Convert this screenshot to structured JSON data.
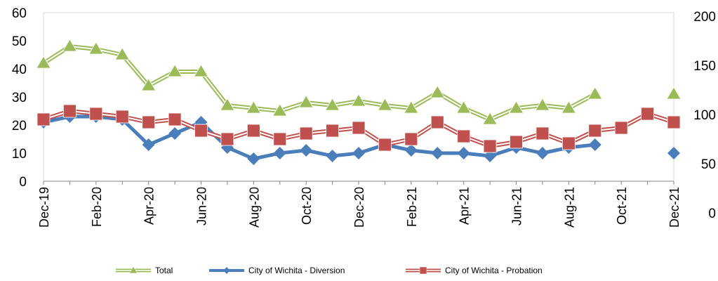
{
  "chart_data": {
    "type": "line",
    "categories": [
      "Dec-19",
      null,
      "Feb-20",
      null,
      "Apr-20",
      null,
      "Jun-20",
      null,
      "Aug-20",
      null,
      "Oct-20",
      null,
      "Dec-20",
      null,
      "Feb-21",
      null,
      "Apr-21",
      null,
      "Jun-21",
      null,
      "Aug-21",
      null,
      "Oct-21",
      null,
      "Dec-21"
    ],
    "ylim": [
      0,
      60
    ],
    "yticks": [
      0,
      10,
      20,
      30,
      40,
      50,
      60
    ],
    "y2lim": [
      0,
      200
    ],
    "y2ticks": [
      0,
      50,
      100,
      150,
      200
    ],
    "series": [
      {
        "name": "Total",
        "color": "#9bbb59",
        "marker": "triangle",
        "values": [
          42,
          48,
          47,
          45,
          34,
          39,
          39,
          27,
          26,
          25,
          28,
          27,
          28.5,
          27,
          26,
          31.5,
          26,
          22,
          26,
          27,
          26,
          31,
          null,
          null,
          31
        ]
      },
      {
        "name": "City of Wichita - Diversion",
        "color": "#4a7ebb",
        "marker": "diamond",
        "values": [
          21,
          23,
          23,
          22,
          13,
          17,
          21,
          12,
          8,
          10,
          11,
          9,
          10,
          13,
          11,
          10,
          10,
          9,
          12,
          10,
          12,
          13,
          null,
          null,
          10
        ]
      },
      {
        "name": "City of Wichita - Probation",
        "color": "#c0504d",
        "marker": "square",
        "values": [
          22,
          25,
          24,
          23,
          21,
          22,
          18,
          15,
          18,
          15,
          17,
          18,
          19,
          13,
          15,
          21,
          16,
          12.5,
          14,
          17,
          13.5,
          18,
          19,
          24,
          21
        ]
      }
    ]
  }
}
